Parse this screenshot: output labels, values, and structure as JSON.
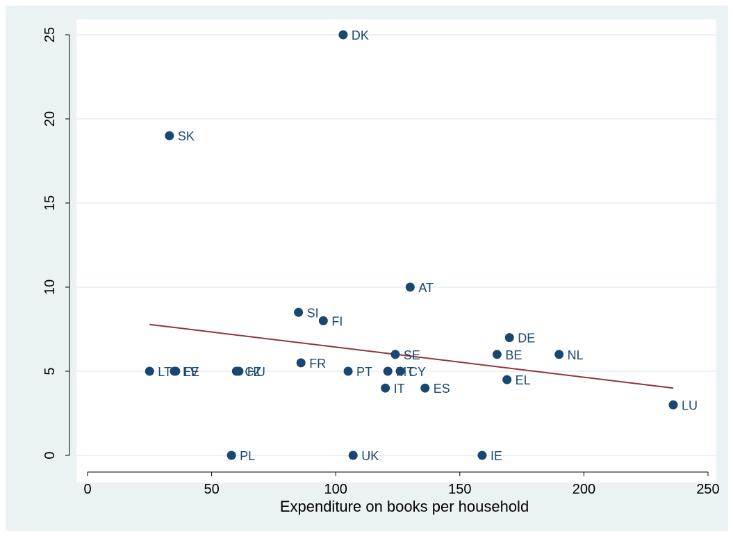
{
  "chart_data": {
    "type": "scatter",
    "title": "",
    "xlabel": "Expenditure on books per household",
    "ylabel": "",
    "xlim": [
      0,
      250
    ],
    "ylim": [
      0,
      25
    ],
    "xticks": [
      0,
      50,
      100,
      150,
      200,
      250
    ],
    "yticks": [
      0,
      5,
      10,
      15,
      20,
      25
    ],
    "grid": "horizontal",
    "colors": {
      "background": "#eaf2f3",
      "plot_background": "#ffffff",
      "grid": "#eaf2f3",
      "marker": "#1a476f",
      "label": "#1a476f",
      "fit_line": "#90353b",
      "axis": "#000000"
    },
    "points": [
      {
        "label": "DK",
        "x": 103,
        "y": 25
      },
      {
        "label": "SK",
        "x": 33,
        "y": 19
      },
      {
        "label": "AT",
        "x": 130,
        "y": 10
      },
      {
        "label": "SI",
        "x": 85,
        "y": 8.5
      },
      {
        "label": "FI",
        "x": 95,
        "y": 8
      },
      {
        "label": "DE",
        "x": 170,
        "y": 7
      },
      {
        "label": "SE",
        "x": 124,
        "y": 6
      },
      {
        "label": "BE",
        "x": 165,
        "y": 6
      },
      {
        "label": "NL",
        "x": 190,
        "y": 6
      },
      {
        "label": "FR",
        "x": 86,
        "y": 5.5
      },
      {
        "label": "LT",
        "x": 25,
        "y": 5
      },
      {
        "label": "EE",
        "x": 35,
        "y": 5
      },
      {
        "label": "LV",
        "x": 35.5,
        "y": 5
      },
      {
        "label": "CZ",
        "x": 60,
        "y": 5
      },
      {
        "label": "HU",
        "x": 61,
        "y": 5
      },
      {
        "label": "PT",
        "x": 105,
        "y": 5
      },
      {
        "label": "MT",
        "x": 121,
        "y": 5
      },
      {
        "label": "CY",
        "x": 126,
        "y": 5
      },
      {
        "label": "EL",
        "x": 169,
        "y": 4.5
      },
      {
        "label": "IT",
        "x": 120,
        "y": 4
      },
      {
        "label": "ES",
        "x": 136,
        "y": 4
      },
      {
        "label": "LU",
        "x": 236,
        "y": 3
      },
      {
        "label": "PL",
        "x": 58,
        "y": 0
      },
      {
        "label": "UK",
        "x": 107,
        "y": 0
      },
      {
        "label": "IE",
        "x": 159,
        "y": 0
      }
    ],
    "fit_line": {
      "x": [
        25,
        236
      ],
      "y": [
        7.78,
        4.0
      ]
    }
  }
}
